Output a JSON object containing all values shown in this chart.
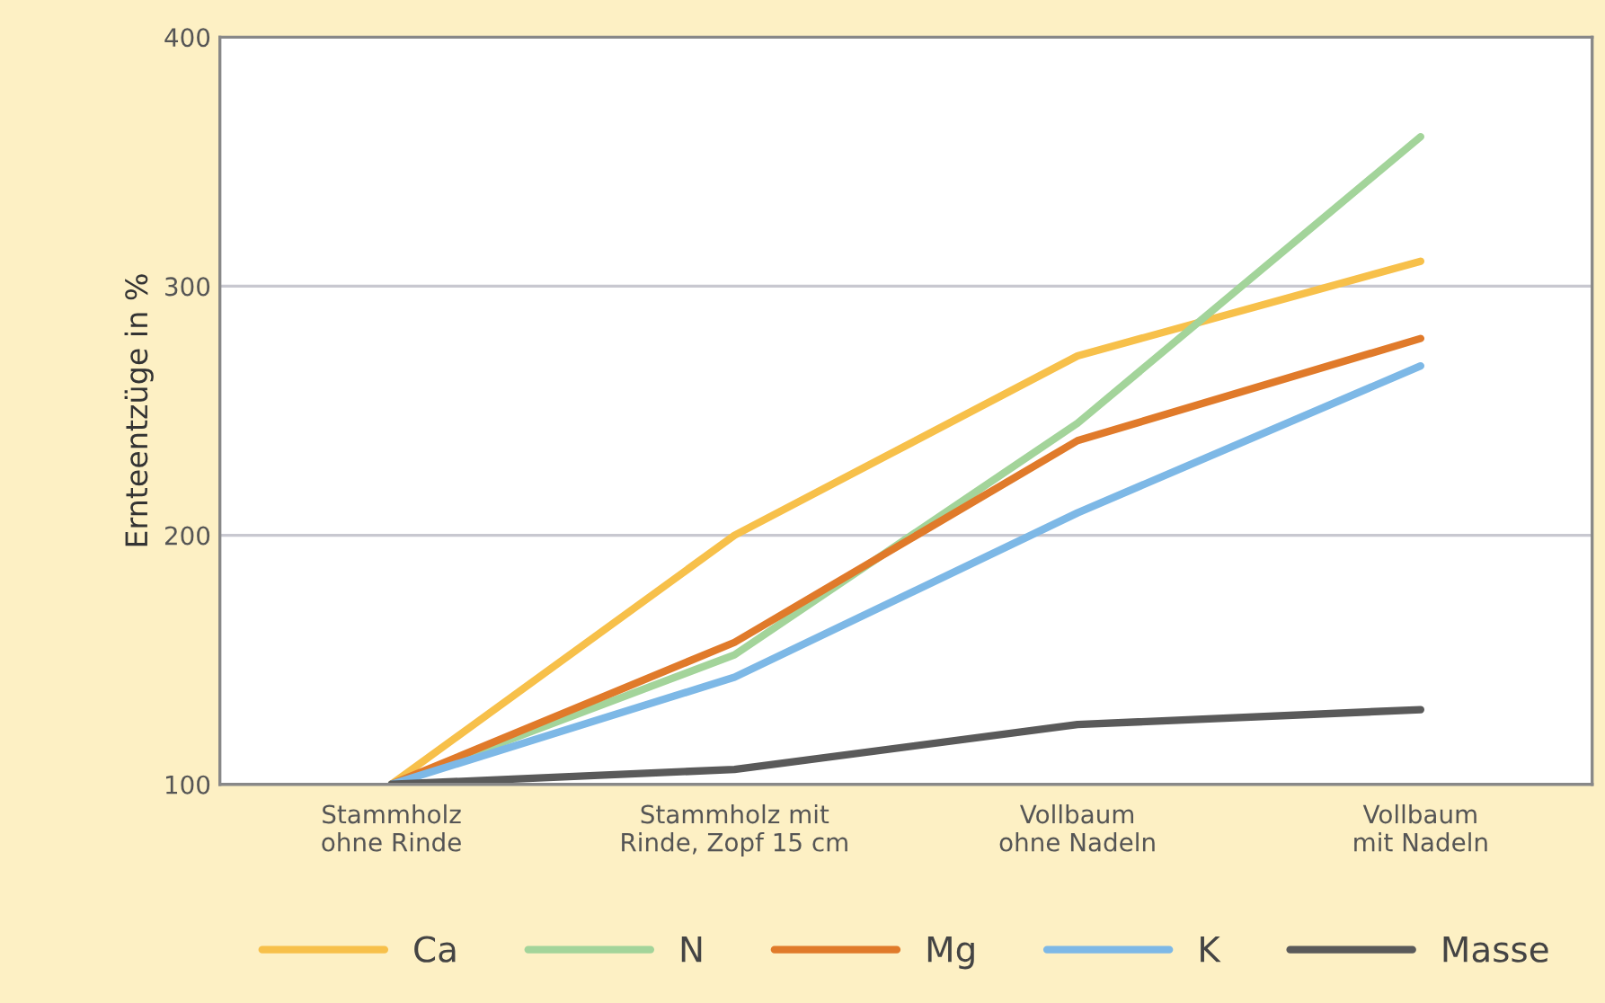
{
  "chart_data": {
    "type": "line",
    "ylabel": "Ernteentzüge in %",
    "categories": [
      "Stammholz\nohne Rinde",
      "Stammholz mit\nRinde, Zopf 15 cm",
      "Vollbaum\nohne Nadeln",
      "Vollbaum\nmit Nadeln"
    ],
    "series": [
      {
        "name": "Ca",
        "color": "#f7c04a",
        "values": [
          100,
          200,
          272,
          310
        ]
      },
      {
        "name": "N",
        "color": "#a3d49a",
        "values": [
          100,
          152,
          245,
          360
        ]
      },
      {
        "name": "Mg",
        "color": "#e07a2a",
        "values": [
          100,
          157,
          238,
          279
        ]
      },
      {
        "name": "K",
        "color": "#7db8e6",
        "values": [
          100,
          143,
          209,
          268
        ]
      },
      {
        "name": "Masse",
        "color": "#5a5a5a",
        "values": [
          100,
          106,
          124,
          130
        ]
      }
    ],
    "ylim": [
      100,
      400
    ],
    "yticks": [
      100,
      200,
      300,
      400
    ],
    "grid": "y",
    "legend": "bottom",
    "marker": "none",
    "line_style": "solid"
  }
}
